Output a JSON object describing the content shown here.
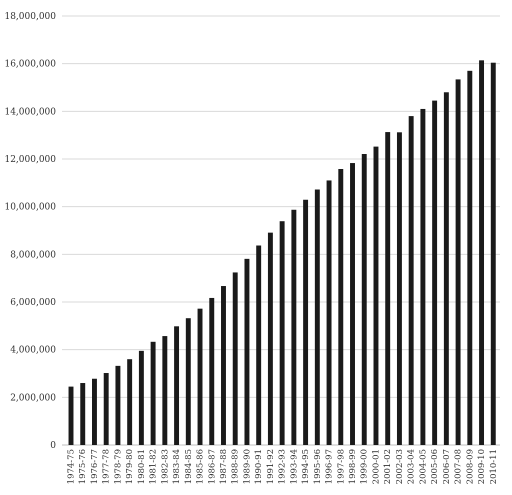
{
  "chart_data": {
    "type": "bar",
    "title": "",
    "xlabel": "",
    "ylabel": "",
    "ylim": [
      0,
      18000000
    ],
    "yticks": [
      0,
      2000000,
      4000000,
      6000000,
      8000000,
      10000000,
      12000000,
      14000000,
      16000000,
      18000000
    ],
    "ytick_labels": [
      "0",
      "2,000,000",
      "4,000,000",
      "6,000,000",
      "8,000,000",
      "10,000,000",
      "12,000,000",
      "14,000,000",
      "16,000,000",
      "18,000,000"
    ],
    "grid": true,
    "bar_color": "#1a1a1a",
    "grid_color": "#d9d9d9",
    "categories": [
      "1974-75",
      "1975-76",
      "1976-77",
      "1977-78",
      "1978-79",
      "1979-80",
      "1980-81",
      "1981-82",
      "1982-83",
      "1983-84",
      "1984-85",
      "1985-86",
      "1986-87",
      "1987-88",
      "1988-89",
      "1989-90",
      "1990-91",
      "1991-92",
      "1992-93",
      "1993-94",
      "1994-95",
      "1995-96",
      "1996-97",
      "1997-98",
      "1998-99",
      "1999-00",
      "2000-01",
      "2001-02",
      "2002-03",
      "2003-04",
      "2004-05",
      "2005-06",
      "2006-07",
      "2007-08",
      "2008-09",
      "2009-10",
      "2010-11"
    ],
    "values": [
      2450000,
      2600000,
      2780000,
      3020000,
      3320000,
      3600000,
      3950000,
      4330000,
      4570000,
      4980000,
      5320000,
      5720000,
      6170000,
      6670000,
      7240000,
      7810000,
      8370000,
      8910000,
      9390000,
      9870000,
      10290000,
      10720000,
      11100000,
      11580000,
      11830000,
      12210000,
      12520000,
      13130000,
      13120000,
      13800000,
      14100000,
      14450000,
      14800000,
      15340000,
      15700000,
      16140000,
      16040000
    ]
  }
}
